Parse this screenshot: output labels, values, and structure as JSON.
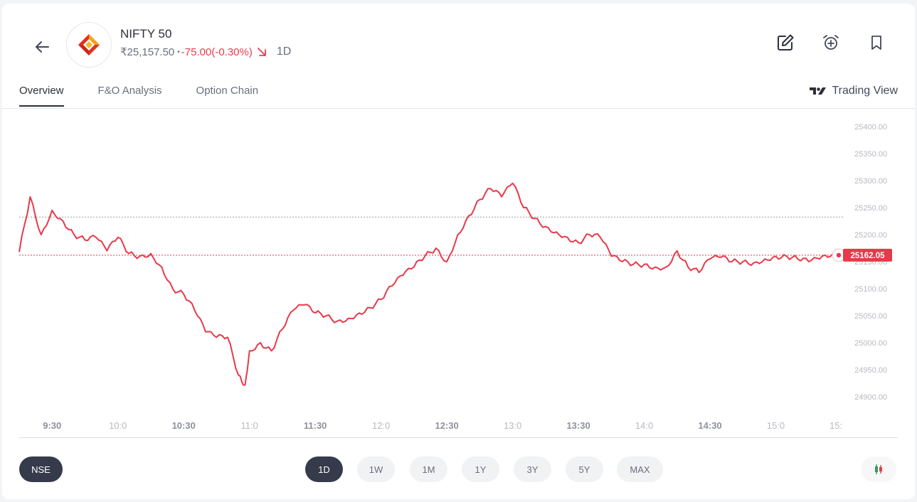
{
  "header": {
    "back_icon": "arrow-left-icon",
    "logo_icon": "nifty-logo-icon",
    "title": "NIFTY 50",
    "price": "₹25,157.50",
    "separator": "•",
    "change": "-75.00(-0.30%)",
    "trend_icon": "arrow-down-right-icon",
    "period": "1D",
    "actions": [
      {
        "name": "edit-icon"
      },
      {
        "name": "alarm-add-icon"
      },
      {
        "name": "bookmark-icon"
      }
    ]
  },
  "tabs": [
    {
      "label": "Overview",
      "active": true
    },
    {
      "label": "F&O Analysis",
      "active": false
    },
    {
      "label": "Option Chain",
      "active": false
    }
  ],
  "trading_view": {
    "label": "Trading View",
    "icon": "tradingview-logo-icon"
  },
  "colors": {
    "line": "#e8394a",
    "accent_dark": "#363b4b",
    "negative": "#eb3b4b"
  },
  "chart_data": {
    "type": "line",
    "title": "",
    "xlabel": "",
    "ylabel": "",
    "ylim": [
      24900,
      25400
    ],
    "yticks": [
      "25400.00",
      "25350.00",
      "25300.00",
      "25250.00",
      "25200.00",
      "25150.00",
      "25100.00",
      "25050.00",
      "25000.00",
      "24950.00",
      "24900.00"
    ],
    "xticks": [
      {
        "label": "9:30",
        "x": "9:30",
        "bold": true
      },
      {
        "label": "10:0",
        "x": "10:00",
        "bold": false
      },
      {
        "label": "10:30",
        "x": "10:30",
        "bold": true
      },
      {
        "label": "11:0",
        "x": "11:00",
        "bold": false
      },
      {
        "label": "11:30",
        "x": "11:30",
        "bold": true
      },
      {
        "label": "12:0",
        "x": "12:00",
        "bold": false
      },
      {
        "label": "12:30",
        "x": "12:30",
        "bold": true
      },
      {
        "label": "13:0",
        "x": "13:00",
        "bold": false
      },
      {
        "label": "13:30",
        "x": "13:30",
        "bold": true
      },
      {
        "label": "14:0",
        "x": "14:00",
        "bold": false
      },
      {
        "label": "14:30",
        "x": "14:30",
        "bold": true
      },
      {
        "label": "15:0",
        "x": "15:00",
        "bold": false
      },
      {
        "label": "15:",
        "x": "15:30",
        "bold": false
      }
    ],
    "series": [
      {
        "x": [
          "9:15",
          "9:20",
          "9:25",
          "9:30",
          "9:35",
          "9:40",
          "9:45",
          "9:50",
          "9:55",
          "10:00",
          "10:05",
          "10:10",
          "10:15",
          "10:20",
          "10:25",
          "10:30",
          "10:35",
          "10:40",
          "10:45",
          "10:50",
          "10:55",
          "10:58",
          "11:00",
          "11:05",
          "11:10",
          "11:15",
          "11:20",
          "11:25",
          "11:30",
          "11:35",
          "11:40",
          "11:45",
          "11:50",
          "11:55",
          "12:00",
          "12:05",
          "12:10",
          "12:15",
          "12:20",
          "12:25",
          "12:30",
          "12:35",
          "12:40",
          "12:45",
          "12:50",
          "12:55",
          "13:00",
          "13:05",
          "13:10",
          "13:15",
          "13:20",
          "13:25",
          "13:30",
          "13:35",
          "13:40",
          "13:45",
          "13:50",
          "13:55",
          "14:00",
          "14:05",
          "14:10",
          "14:15",
          "14:20",
          "14:25",
          "14:30",
          "14:35",
          "14:40",
          "14:45",
          "14:50",
          "14:55",
          "15:00",
          "15:05",
          "15:10",
          "15:15",
          "15:20",
          "15:25",
          "15:30"
        ],
        "y": [
          25168,
          25270,
          25200,
          25245,
          25225,
          25200,
          25190,
          25195,
          25170,
          25195,
          25165,
          25160,
          25165,
          25140,
          25100,
          25090,
          25060,
          25020,
          25010,
          25010,
          24940,
          24922,
          24985,
          25000,
          24985,
          25025,
          25060,
          25070,
          25055,
          25050,
          25040,
          25045,
          25055,
          25065,
          25080,
          25105,
          25125,
          25140,
          25160,
          25175,
          25150,
          25200,
          25235,
          25265,
          25285,
          25270,
          25295,
          25250,
          25230,
          25215,
          25205,
          25195,
          25185,
          25200,
          25195,
          25160,
          25150,
          25145,
          25145,
          25140,
          25140,
          25170,
          25140,
          25130,
          25155,
          25158,
          25150,
          25150,
          25148,
          25155,
          25160,
          25160,
          25155,
          25150,
          25155,
          25160,
          25162
        ]
      }
    ],
    "reference_lines": [
      25232.5,
      25162.05
    ],
    "last_value_label": "25162.05",
    "grid": false,
    "legend": "none"
  },
  "controls": {
    "exchange": "NSE",
    "ranges": [
      {
        "label": "1D",
        "active": true
      },
      {
        "label": "1W",
        "active": false
      },
      {
        "label": "1M",
        "active": false
      },
      {
        "label": "1Y",
        "active": false
      },
      {
        "label": "3Y",
        "active": false
      },
      {
        "label": "5Y",
        "active": false
      },
      {
        "label": "MAX",
        "active": false
      }
    ],
    "chart_type_icon": "candlestick-icon"
  }
}
